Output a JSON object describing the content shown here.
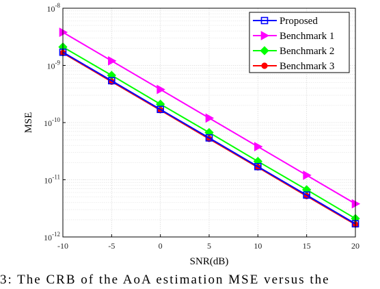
{
  "chart_data": {
    "type": "line",
    "x": [
      -10,
      -5,
      0,
      5,
      10,
      15,
      20
    ],
    "x_ticks": [
      "-10",
      "-5",
      "0",
      "5",
      "10",
      "15",
      "20"
    ],
    "y_scale": "log",
    "y_tick_values": [
      1e-12,
      1e-11,
      1e-10,
      1e-09,
      1e-08
    ],
    "y_tick_mantissa": "10",
    "y_tick_exponents": [
      "-12",
      "-11",
      "-10",
      "-9",
      "-8"
    ],
    "xlim": [
      -10,
      20
    ],
    "ylim": [
      1e-12,
      1e-08
    ],
    "xlabel": "SNR(dB)",
    "ylabel": "MSE",
    "grid": true,
    "legend_position": "top-right",
    "series": [
      {
        "name": "Proposed",
        "color": "#0000ff",
        "marker": "square",
        "values": [
          1.7e-09,
          5.4e-10,
          1.7e-10,
          5.4e-11,
          1.7e-11,
          5.4e-12,
          1.7e-12
        ]
      },
      {
        "name": "Benchmark 1",
        "color": "#ff00ff",
        "marker": "triangle-right",
        "values": [
          3.8e-09,
          1.2e-09,
          3.8e-10,
          1.2e-10,
          3.8e-11,
          1.2e-11,
          3.8e-12
        ]
      },
      {
        "name": "Benchmark 2",
        "color": "#00ff00",
        "marker": "diamond",
        "values": [
          2.1e-09,
          6.7e-10,
          2.1e-10,
          6.7e-11,
          2.1e-11,
          6.7e-12,
          2.1e-12
        ]
      },
      {
        "name": "Benchmark 3",
        "color": "#ff0000",
        "marker": "circle",
        "values": [
          1.65e-09,
          5.2e-10,
          1.65e-10,
          5.2e-11,
          1.65e-11,
          5.2e-12,
          1.65e-12
        ]
      }
    ]
  },
  "caption": "3: The CRB of the AoA estimation MSE versus the"
}
